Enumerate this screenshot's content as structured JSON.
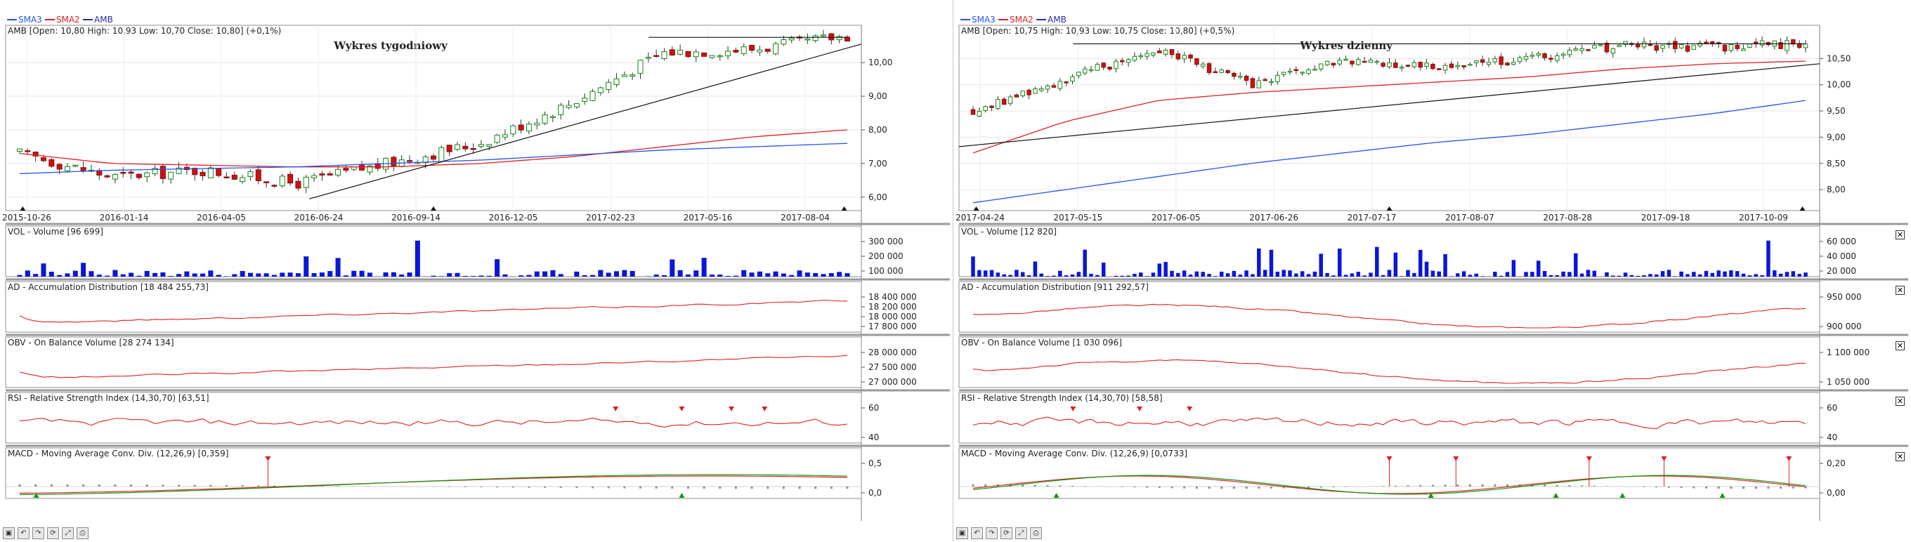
{
  "panels": [
    {
      "id": "weekly",
      "legend": [
        {
          "name": "SMA3",
          "color": "#2255ee"
        },
        {
          "name": "SMA2",
          "color": "#e02020"
        },
        {
          "name": "AMB",
          "color": "#2a2aaa"
        }
      ],
      "header": "AMB [Open: 10,80  High: 10,93  Low: 10,70  Close: 10,80] (+0,1%)",
      "title": "Wykres tygodniowy",
      "date_labels": [
        "2015-10-26",
        "2016-01-14",
        "2016-04-05",
        "2016-06-24",
        "2016-09-14",
        "2016-12-05",
        "2017-02-23",
        "2017-05-16",
        "2017-08-04"
      ],
      "price_ticks": [
        "10,00",
        "9,00",
        "8,00",
        "7,00",
        "6,00"
      ],
      "price_tick_values": [
        10.0,
        9.0,
        8.0,
        7.0,
        6.0
      ],
      "price_range": [
        5.6,
        10.9
      ],
      "indicators": [
        {
          "title": "VOL - Volume [96 699]",
          "ticks": [
            "300 000",
            "200 000",
            "100 000"
          ]
        },
        {
          "title": "AD - Accumulation Distribution [18 484 255,73]",
          "ticks": [
            "18 400 000",
            "18 200 000",
            "18 000 000",
            "17 800 000"
          ]
        },
        {
          "title": "OBV - On Balance Volume [28 274 134]",
          "ticks": [
            "28 000 000",
            "27 500 000",
            "27 000 000"
          ]
        },
        {
          "title": "RSI - Relative Strength Index (14,30,70) [63,51]",
          "ticks": [
            "60",
            "40"
          ]
        },
        {
          "title": "MACD - Moving Average Conv. Div. (12,26,9) [0,359]",
          "ticks": [
            "0,5",
            "0,0"
          ]
        }
      ]
    },
    {
      "id": "daily",
      "legend": [
        {
          "name": "SMA3",
          "color": "#2255ee"
        },
        {
          "name": "SMA2",
          "color": "#e02020"
        },
        {
          "name": "AMB",
          "color": "#2a2aaa"
        }
      ],
      "header": "AMB [Open: 10,75  High: 10,93  Low: 10,75  Close: 10,80] (+0,5%)",
      "title": "Wykres dzienny",
      "date_labels": [
        "2017-04-24",
        "2017-05-15",
        "2017-06-05",
        "2017-06-26",
        "2017-07-17",
        "2017-08-07",
        "2017-08-28",
        "2017-09-18",
        "2017-10-09"
      ],
      "price_ticks": [
        "10,50",
        "10,00",
        "9,50",
        "9,00",
        "8,50",
        "8,00"
      ],
      "price_tick_values": [
        10.5,
        10.0,
        9.5,
        9.0,
        8.5,
        8.0
      ],
      "price_range": [
        7.6,
        11.0
      ],
      "indicators": [
        {
          "title": "VOL - Volume [12 820]",
          "ticks": [
            "60 000",
            "40 000",
            "20 000"
          ]
        },
        {
          "title": "AD - Accumulation Distribution [911 292,57]",
          "ticks": [
            "950 000",
            "900 000"
          ]
        },
        {
          "title": "OBV - On Balance Volume [1 030 096]",
          "ticks": [
            "1 100 000",
            "1 050 000"
          ]
        },
        {
          "title": "RSI - Relative Strength Index (14,30,70) [58,58]",
          "ticks": [
            "60",
            "40"
          ]
        },
        {
          "title": "MACD - Moving Average Conv. Div. (12,26,9) [0,0733]",
          "ticks": [
            "0,20",
            "0,00"
          ]
        }
      ]
    }
  ],
  "chart_data": [
    {
      "type": "line",
      "title": "Wykres tygodniowy",
      "x": [
        "2015-10-26",
        "2016-01-14",
        "2016-04-05",
        "2016-06-24",
        "2016-09-14",
        "2016-12-05",
        "2017-02-23",
        "2017-05-16",
        "2017-08-04",
        "2017-10-20"
      ],
      "series": [
        {
          "name": "AMB",
          "values": [
            7.3,
            6.6,
            6.8,
            6.4,
            7.0,
            7.6,
            8.8,
            10.3,
            10.4,
            10.8
          ]
        },
        {
          "name": "SMA2",
          "values": [
            7.3,
            7.0,
            6.95,
            6.9,
            6.9,
            7.0,
            7.2,
            7.5,
            7.8,
            8.0
          ]
        },
        {
          "name": "SMA3",
          "values": [
            6.7,
            6.8,
            6.85,
            6.9,
            7.0,
            7.1,
            7.25,
            7.4,
            7.5,
            7.6
          ]
        }
      ],
      "ylim": [
        5.6,
        10.9
      ]
    },
    {
      "type": "line",
      "title": "Wykres dzienny",
      "x": [
        "2017-04-24",
        "2017-05-15",
        "2017-06-05",
        "2017-06-26",
        "2017-07-17",
        "2017-08-07",
        "2017-08-28",
        "2017-09-18",
        "2017-10-09",
        "2017-10-27"
      ],
      "series": [
        {
          "name": "AMB",
          "values": [
            9.5,
            10.1,
            10.7,
            10.0,
            10.45,
            10.35,
            10.5,
            10.75,
            10.7,
            10.8
          ]
        },
        {
          "name": "SMA2",
          "values": [
            8.7,
            9.3,
            9.7,
            9.85,
            9.95,
            10.05,
            10.15,
            10.3,
            10.4,
            10.45
          ]
        },
        {
          "name": "SMA3",
          "values": [
            7.75,
            8.0,
            8.25,
            8.5,
            8.7,
            8.9,
            9.05,
            9.25,
            9.45,
            9.7
          ]
        }
      ],
      "ylim": [
        7.6,
        11.0
      ]
    }
  ]
}
